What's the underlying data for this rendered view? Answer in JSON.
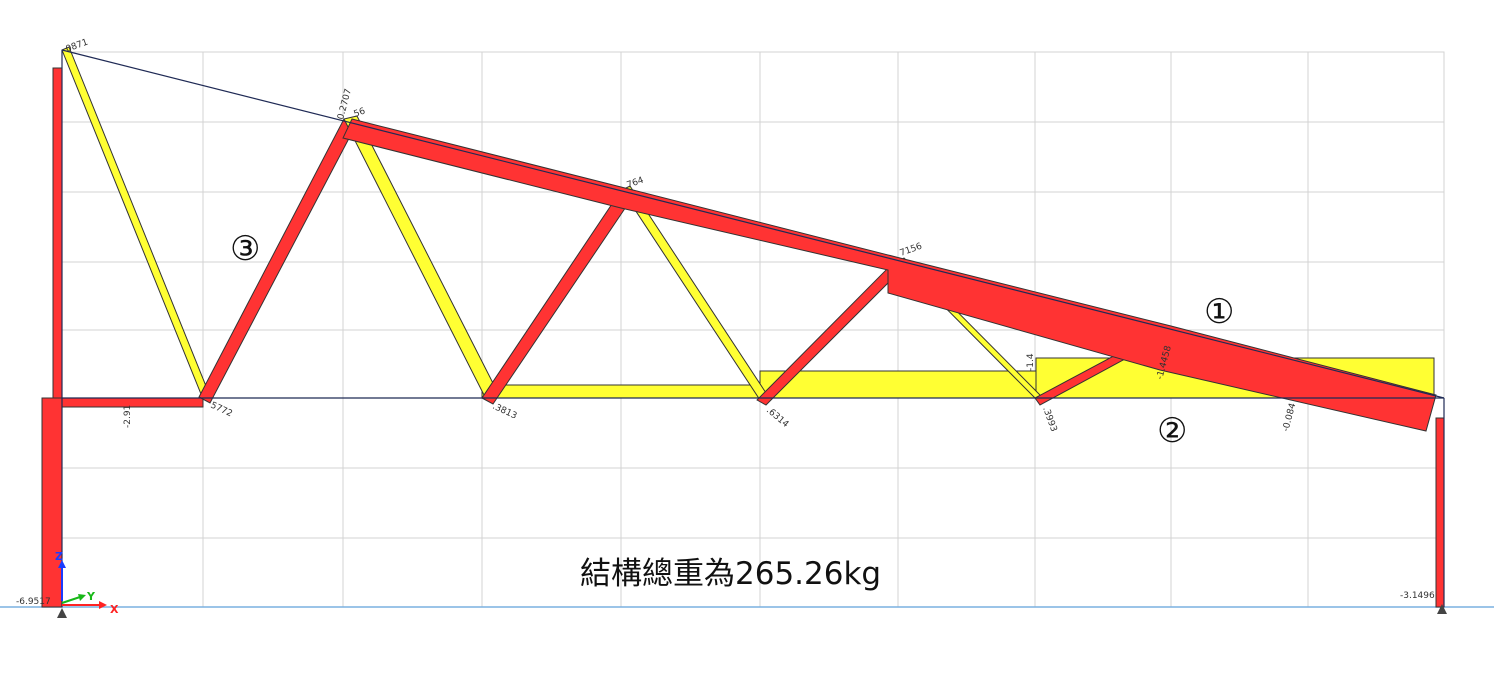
{
  "caption": "結構總重為265.26kg",
  "markers": [
    "①",
    "②",
    "③"
  ],
  "axis": {
    "z": "Z",
    "y": "Y",
    "x": "X"
  },
  "member_labels": [
    "0871",
    "0.2707",
    "56",
    "764",
    "7156",
    "-2.91",
    "5772",
    ".3813",
    ".6314",
    ".3993",
    "-1.4",
    "-1.4458",
    "-0.084",
    "-6.9517",
    "-3.1496"
  ],
  "colors": {
    "tension": "#ff3333",
    "compression": "#ffff33",
    "outline": "#333333",
    "chord": "#1f2a55",
    "grid": "#d3d3d3",
    "ground": "#7ab0e0",
    "axis_z": "#1a3cff",
    "axis_y": "#18b818",
    "axis_x": "#ff2222"
  }
}
